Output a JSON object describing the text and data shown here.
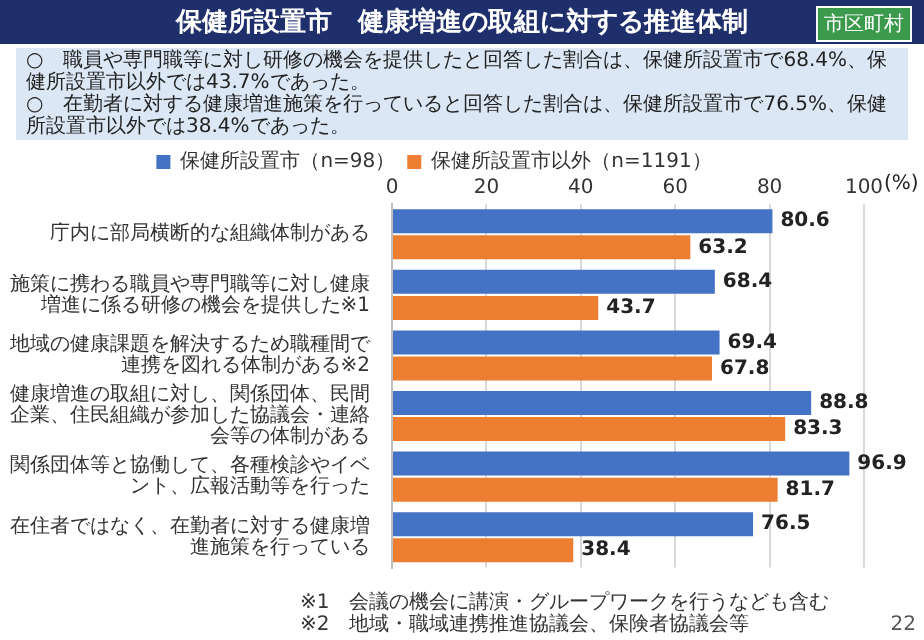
{
  "chart_data": {
    "type": "bar",
    "orientation": "horizontal",
    "title": "保健所設置市　健康増進の取組に対する推進体制",
    "subtitle": "市区町村",
    "categories": [
      "庁内に部局横断的な組織体制がある",
      "施策に携わる職員や専門職等に対し健康増進に係る研修の機会を提供した※1",
      "地域の健康課題を解決するため職種間で連携を図れる体制がある※2",
      "健康増進の取組に対し、関係団体、民間企業、住民組織が参加した協議会・連絡会等の体制がある",
      "関係団体等と協働して、各種検診やイベント、広報活動等を行った",
      "在住者ではなく、在勤者に対する健康増進施策を行っている"
    ],
    "series": [
      {
        "name": "保健所設置市（n=98）",
        "color": "#4472c4",
        "values": [
          80.6,
          68.4,
          69.4,
          88.8,
          96.9,
          76.5
        ]
      },
      {
        "name": "保健所設置市以外（n=1191）",
        "color": "#ed7d31",
        "values": [
          63.2,
          43.7,
          67.8,
          83.3,
          81.7,
          38.4
        ]
      }
    ],
    "xlabel": "(%)",
    "xlim": [
      0,
      100
    ],
    "xticks": [
      0,
      20,
      40,
      60,
      80,
      100
    ],
    "grid": "x",
    "legend": "top",
    "data_labels": true,
    "annotations": [
      "○　職員や専門職等に対し研修の機会を提供したと回答した割合は、保健所設置市で68.4%、保健所設置市以外では43.7%であった。",
      "○　在勤者に対する健康増進施策を行っていると回答した割合は、保健所設置市で76.5%、保健所設置市以外では38.4%であった。",
      "※1　会議の機会に講演・グループワークを行うなども含む",
      "※2　地域・職域連携推進協議会、保険者協議会等",
      "22"
    ]
  }
}
